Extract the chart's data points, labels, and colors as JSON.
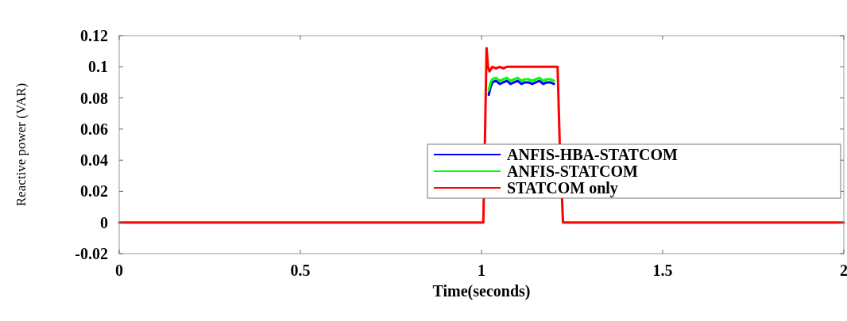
{
  "chart_data": {
    "type": "line",
    "xlabel": "Time(seconds)",
    "ylabel": "Reactive power (VAR)",
    "xlim": [
      0,
      2
    ],
    "xticks": [
      0,
      0.5,
      1,
      1.5,
      2
    ],
    "ylim": [
      -0.02,
      0.12
    ],
    "yticks": [
      -0.02,
      0,
      0.02,
      0.04,
      0.06,
      0.08,
      0.1,
      0.12
    ],
    "legend": "right",
    "grid": false,
    "line_style": "solid",
    "marker": "none",
    "series": [
      {
        "name": "ANFIS-HBA-STATCOM",
        "color": "#0000ff",
        "x": [
          1.02,
          1.025,
          1.03,
          1.04,
          1.05,
          1.06,
          1.07,
          1.08,
          1.09,
          1.1,
          1.11,
          1.12,
          1.13,
          1.14,
          1.15,
          1.16,
          1.17,
          1.18,
          1.19,
          1.2
        ],
        "values": [
          0.082,
          0.087,
          0.09,
          0.091,
          0.089,
          0.09,
          0.091,
          0.089,
          0.09,
          0.091,
          0.089,
          0.09,
          0.09,
          0.089,
          0.09,
          0.091,
          0.089,
          0.09,
          0.09,
          0.089
        ]
      },
      {
        "name": "ANFIS-STATCOM",
        "color": "#00ff00",
        "x": [
          1.02,
          1.025,
          1.03,
          1.04,
          1.05,
          1.06,
          1.07,
          1.08,
          1.09,
          1.1,
          1.11,
          1.12,
          1.13,
          1.14,
          1.15,
          1.16,
          1.17,
          1.18,
          1.19,
          1.2
        ],
        "values": [
          0.085,
          0.09,
          0.092,
          0.093,
          0.091,
          0.092,
          0.093,
          0.091,
          0.092,
          0.093,
          0.091,
          0.092,
          0.092,
          0.091,
          0.092,
          0.093,
          0.091,
          0.092,
          0.092,
          0.091
        ]
      },
      {
        "name": "STATCOM only",
        "color": "#ff0000",
        "x": [
          0,
          1.005,
          1.01,
          1.014,
          1.018,
          1.022,
          1.03,
          1.04,
          1.05,
          1.06,
          1.07,
          1.08,
          1.09,
          1.1,
          1.12,
          1.14,
          1.16,
          1.18,
          1.2,
          1.21,
          1.216,
          1.225,
          2
        ],
        "values": [
          0,
          0,
          0.06,
          0.112,
          0.1,
          0.097,
          0.1,
          0.099,
          0.1,
          0.099,
          0.1,
          0.1,
          0.1,
          0.1,
          0.1,
          0.1,
          0.1,
          0.1,
          0.1,
          0.1,
          0.05,
          0,
          0
        ]
      }
    ]
  }
}
